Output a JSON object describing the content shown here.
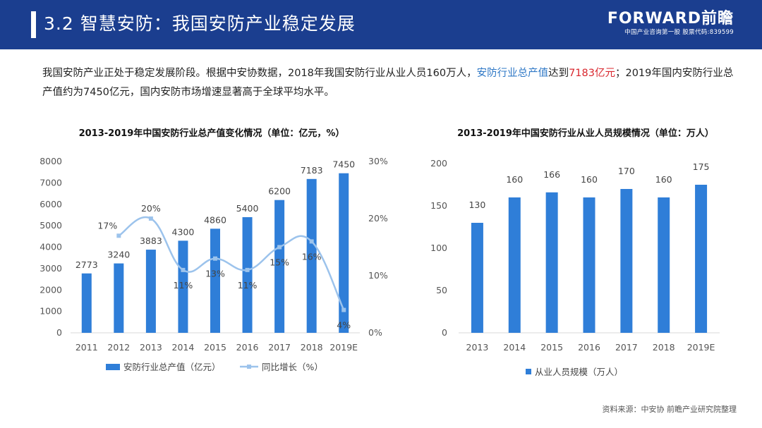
{
  "header": {
    "title": "3.2 智慧安防：我国安防产业稳定发展",
    "logo": "FORWARD前瞻",
    "tagline": "中国产业咨询第一股  股票代码:839599"
  },
  "intro": {
    "p1": "我国安防产业正处于稳定发展阶段。根据中安协数据，2018年我国安防行业从业人员160万人，",
    "p2": "安防行业总产值",
    "p3": "达到",
    "p4": "7183亿元",
    "p5": "；2019年国内安防行业总产值约为7450亿元，国内安防市场增速显著高于全球平均水平。"
  },
  "source": "资料来源：中安协 前瞻产业研究院整理",
  "colors": {
    "header": "#1b3e8f",
    "bar": "#2f7ed8",
    "line": "#9cc3ec",
    "highlight": "#2f78c6",
    "red": "#d9272e"
  },
  "chart_data": [
    {
      "type": "bar",
      "title": "2013-2019年中国安防行业总产值变化情况（单位：亿元，%）",
      "categories": [
        "2011",
        "2012",
        "2013",
        "2014",
        "2015",
        "2016",
        "2017",
        "2018",
        "2019E"
      ],
      "series": [
        {
          "name": "安防行业总产值（亿元）",
          "type": "bar",
          "axis": "left",
          "values": [
            2773,
            3240,
            3883,
            4300,
            4860,
            5400,
            6200,
            7183,
            7450
          ],
          "labels": [
            "2773",
            "3240",
            "3883",
            "4300",
            "4860",
            "5400",
            "6200",
            "7183",
            "7450"
          ]
        },
        {
          "name": "同比增长（%）",
          "type": "line",
          "axis": "right",
          "values": [
            null,
            17,
            20,
            11,
            13,
            11,
            15,
            16,
            4
          ],
          "labels": [
            "",
            "17%",
            "20%",
            "11%",
            "13%",
            "11%",
            "15%",
            "16%",
            "4%"
          ]
        }
      ],
      "ylim_left": [
        0,
        8000
      ],
      "yticks_left": [
        "0",
        "1000",
        "2000",
        "3000",
        "4000",
        "5000",
        "6000",
        "7000",
        "8000"
      ],
      "ylim_right": [
        0,
        30
      ],
      "yticks_right": [
        "0%",
        "10%",
        "20%",
        "30%"
      ],
      "legend": "bottom"
    },
    {
      "type": "bar",
      "title": "2013-2019年中国安防行业从业人员规模情况（单位：万人）",
      "categories": [
        "2013",
        "2014",
        "2015",
        "2016",
        "2017",
        "2018",
        "2019E"
      ],
      "series": [
        {
          "name": "从业人员规模（万人）",
          "values": [
            130,
            160,
            166,
            160,
            170,
            160,
            175
          ],
          "labels": [
            "130",
            "160",
            "166",
            "160",
            "170",
            "160",
            "175"
          ]
        }
      ],
      "ylim": [
        0,
        200
      ],
      "yticks": [
        "0",
        "50",
        "100",
        "150",
        "200"
      ],
      "legend": "bottom"
    }
  ]
}
